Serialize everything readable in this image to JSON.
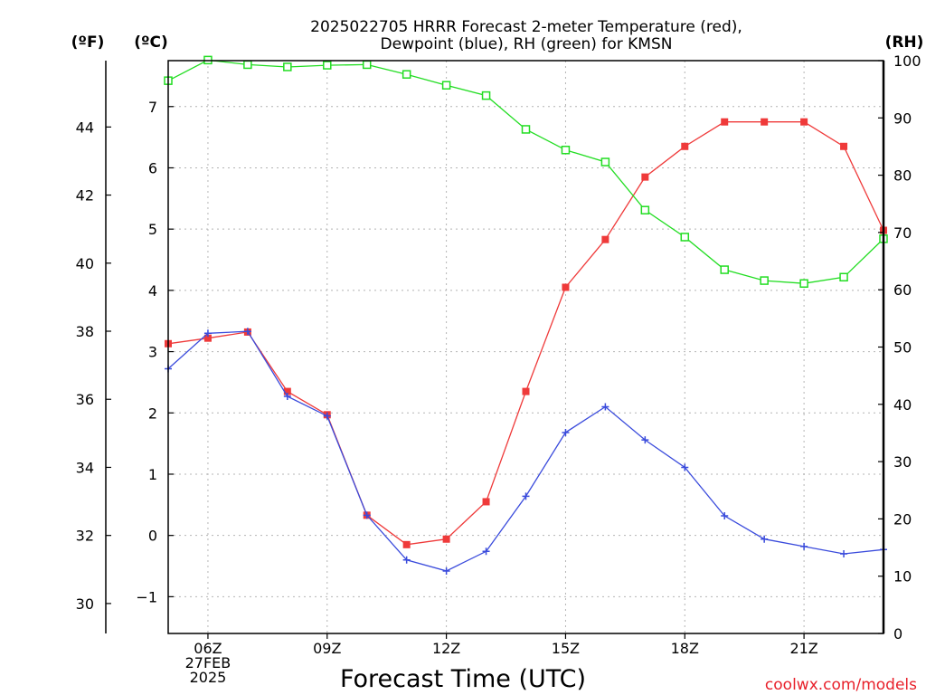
{
  "chart_data": {
    "type": "line",
    "title": "2025022705 HRRR Forecast 2-meter Temperature (red),",
    "subtitle": "Dewpoint (blue), RH (green) for KMSN",
    "xlabel": "Forecast Time (UTC)",
    "credit": "coolwx.com/models",
    "axis_heads": {
      "fahrenheit": "(ºF)",
      "celsius": "(ºC)",
      "rh": "(RH)"
    },
    "x_ticks": [
      {
        "hour": 6,
        "lines": [
          "06Z",
          "27FEB",
          "2025"
        ]
      },
      {
        "hour": 9,
        "lines": [
          "09Z"
        ]
      },
      {
        "hour": 12,
        "lines": [
          "12Z"
        ]
      },
      {
        "hour": 15,
        "lines": [
          "15Z"
        ]
      },
      {
        "hour": 18,
        "lines": [
          "18Z"
        ]
      },
      {
        "hour": 21,
        "lines": [
          "21Z"
        ]
      }
    ],
    "x_range_hours": [
      5,
      23
    ],
    "celsius_axis": {
      "ylim": [
        -1.6,
        7.75
      ],
      "ticks": [
        -1,
        0,
        1,
        2,
        3,
        4,
        5,
        6,
        7
      ]
    },
    "fahrenheit_axis": {
      "ylim": [
        29.12,
        45.95
      ],
      "ticks": [
        30,
        32,
        34,
        36,
        38,
        40,
        42,
        44
      ]
    },
    "rh_axis": {
      "ylim": [
        0,
        100
      ],
      "ticks": [
        0,
        10,
        20,
        30,
        40,
        50,
        60,
        70,
        80,
        90,
        100
      ]
    },
    "grid": true,
    "x_hours": [
      5,
      6,
      7,
      8,
      9,
      10,
      11,
      12,
      13,
      14,
      15,
      16,
      17,
      18,
      19,
      20,
      21,
      22,
      23
    ],
    "series": [
      {
        "name": "Temperature",
        "axis": "celsius",
        "color": "#ef3a3a",
        "marker": "filled-square",
        "values": [
          3.13,
          3.22,
          3.32,
          2.35,
          1.97,
          0.33,
          -0.15,
          -0.06,
          0.55,
          2.35,
          4.05,
          4.83,
          5.85,
          6.35,
          6.75,
          6.75,
          6.75,
          6.35,
          4.98
        ]
      },
      {
        "name": "Dewpoint",
        "axis": "celsius",
        "color": "#3a4bdc",
        "marker": "plus",
        "values": [
          2.72,
          3.3,
          3.33,
          2.27,
          1.95,
          0.33,
          -0.4,
          -0.58,
          -0.26,
          0.64,
          1.68,
          2.1,
          1.56,
          1.11,
          0.32,
          -0.06,
          -0.18,
          -0.3,
          -0.23
        ]
      },
      {
        "name": "RH",
        "axis": "rh",
        "color": "#22dd22",
        "marker": "open-square",
        "values": [
          96.5,
          100.1,
          99.3,
          98.9,
          99.2,
          99.3,
          97.6,
          95.7,
          93.9,
          88.0,
          84.4,
          82.3,
          73.9,
          69.2,
          63.5,
          61.6,
          61.1,
          62.2,
          68.9
        ]
      }
    ]
  }
}
